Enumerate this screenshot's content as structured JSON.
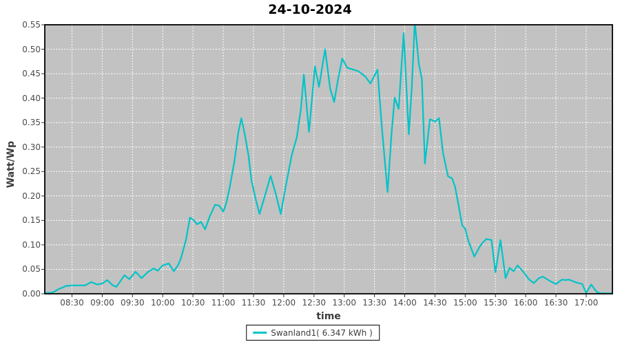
{
  "title": "24-10-2024",
  "axes": {
    "x_label": "time",
    "y_label": "Watt/Wp",
    "x_ticks": [
      "08:30",
      "09:00",
      "09:30",
      "10:00",
      "10:30",
      "11:00",
      "11:30",
      "12:00",
      "12:30",
      "13:00",
      "13:30",
      "14:00",
      "14:30",
      "15:00",
      "15:30",
      "16:00",
      "16:30",
      "17:00"
    ],
    "y_ticks": [
      "0.00",
      "0.05",
      "0.10",
      "0.15",
      "0.20",
      "0.25",
      "0.30",
      "0.35",
      "0.40",
      "0.45",
      "0.50",
      "0.55"
    ]
  },
  "legend": {
    "label": "Swanland1( 6.347 kWh )"
  },
  "colors": {
    "series": "#00c3c7",
    "plot_background": "#c2c2c2",
    "gridline": "#ffffff",
    "plot_border": "#000000",
    "tick_text": "#4a4a4a",
    "axis_label_text": "#3d3d3d"
  },
  "chart_data": {
    "type": "line",
    "title": "24-10-2024",
    "xlabel": "time",
    "ylabel": "Watt/Wp",
    "ylim": [
      0,
      0.55
    ],
    "x_range": [
      "08:03",
      "17:26"
    ],
    "x_tick_interval_minutes": 30,
    "grid": true,
    "grid_style": "white dashed on gray",
    "legend_position": "bottom",
    "series": [
      {
        "name": "Swanland1( 6.347 kWh )",
        "color": "#00c3c7",
        "energy_total_kwh": 6.347,
        "points": [
          [
            "08:04",
            0.002
          ],
          [
            "08:09",
            0.002
          ],
          [
            "08:12",
            0.004
          ],
          [
            "08:17",
            0.01
          ],
          [
            "08:21",
            0.013
          ],
          [
            "08:24",
            0.016
          ],
          [
            "08:30",
            0.017
          ],
          [
            "08:36",
            0.017
          ],
          [
            "08:43",
            0.017
          ],
          [
            "08:49",
            0.024
          ],
          [
            "08:55",
            0.019
          ],
          [
            "09:00",
            0.021
          ],
          [
            "09:05",
            0.028
          ],
          [
            "09:10",
            0.018
          ],
          [
            "09:14",
            0.014
          ],
          [
            "09:18",
            0.026
          ],
          [
            "09:22",
            0.038
          ],
          [
            "09:27",
            0.03
          ],
          [
            "09:33",
            0.045
          ],
          [
            "09:39",
            0.032
          ],
          [
            "09:45",
            0.044
          ],
          [
            "09:51",
            0.052
          ],
          [
            "09:55",
            0.047
          ],
          [
            "10:00",
            0.058
          ],
          [
            "10:06",
            0.062
          ],
          [
            "10:11",
            0.046
          ],
          [
            "10:15",
            0.058
          ],
          [
            "10:18",
            0.072
          ],
          [
            "10:23",
            0.11
          ],
          [
            "10:27",
            0.156
          ],
          [
            "10:31",
            0.15
          ],
          [
            "10:34",
            0.142
          ],
          [
            "10:38",
            0.147
          ],
          [
            "10:42",
            0.132
          ],
          [
            "10:47",
            0.16
          ],
          [
            "10:52",
            0.182
          ],
          [
            "10:56",
            0.18
          ],
          [
            "11:00",
            0.168
          ],
          [
            "11:03",
            0.185
          ],
          [
            "11:06",
            0.213
          ],
          [
            "11:11",
            0.27
          ],
          [
            "11:15",
            0.33
          ],
          [
            "11:18",
            0.359
          ],
          [
            "11:21",
            0.33
          ],
          [
            "11:25",
            0.284
          ],
          [
            "11:28",
            0.232
          ],
          [
            "11:32",
            0.195
          ],
          [
            "11:36",
            0.163
          ],
          [
            "11:42",
            0.205
          ],
          [
            "11:47",
            0.241
          ],
          [
            "11:52",
            0.205
          ],
          [
            "11:57",
            0.163
          ],
          [
            "12:02",
            0.22
          ],
          [
            "12:08",
            0.284
          ],
          [
            "12:13",
            0.32
          ],
          [
            "12:17",
            0.378
          ],
          [
            "12:20",
            0.448
          ],
          [
            "12:25",
            0.331
          ],
          [
            "12:31",
            0.465
          ],
          [
            "12:35",
            0.423
          ],
          [
            "12:41",
            0.5
          ],
          [
            "12:46",
            0.42
          ],
          [
            "12:50",
            0.392
          ],
          [
            "12:54",
            0.44
          ],
          [
            "12:58",
            0.481
          ],
          [
            "13:03",
            0.462
          ],
          [
            "13:08",
            0.459
          ],
          [
            "13:14",
            0.455
          ],
          [
            "13:21",
            0.444
          ],
          [
            "13:26",
            0.43
          ],
          [
            "13:33",
            0.458
          ],
          [
            "13:37",
            0.349
          ],
          [
            "13:43",
            0.208
          ],
          [
            "13:47",
            0.33
          ],
          [
            "13:50",
            0.401
          ],
          [
            "13:54",
            0.378
          ],
          [
            "13:59",
            0.533
          ],
          [
            "14:04",
            0.326
          ],
          [
            "14:07",
            0.42
          ],
          [
            "14:10",
            0.556
          ],
          [
            "14:14",
            0.47
          ],
          [
            "14:17",
            0.439
          ],
          [
            "14:20",
            0.266
          ],
          [
            "14:25",
            0.357
          ],
          [
            "14:30",
            0.352
          ],
          [
            "14:34",
            0.359
          ],
          [
            "14:38",
            0.288
          ],
          [
            "14:43",
            0.24
          ],
          [
            "14:47",
            0.236
          ],
          [
            "14:50",
            0.218
          ],
          [
            "14:53",
            0.185
          ],
          [
            "14:57",
            0.14
          ],
          [
            "15:00",
            0.133
          ],
          [
            "15:03",
            0.109
          ],
          [
            "15:09",
            0.076
          ],
          [
            "15:14",
            0.095
          ],
          [
            "15:17",
            0.104
          ],
          [
            "15:21",
            0.112
          ],
          [
            "15:26",
            0.11
          ],
          [
            "15:30",
            0.044
          ],
          [
            "15:35",
            0.11
          ],
          [
            "15:40",
            0.032
          ],
          [
            "15:44",
            0.053
          ],
          [
            "15:48",
            0.046
          ],
          [
            "15:52",
            0.058
          ],
          [
            "15:58",
            0.044
          ],
          [
            "16:03",
            0.03
          ],
          [
            "16:08",
            0.022
          ],
          [
            "16:13",
            0.032
          ],
          [
            "16:17",
            0.035
          ],
          [
            "16:24",
            0.026
          ],
          [
            "16:30",
            0.02
          ],
          [
            "16:36",
            0.029
          ],
          [
            "16:39",
            0.028
          ],
          [
            "16:43",
            0.029
          ],
          [
            "16:50",
            0.023
          ],
          [
            "16:56",
            0.02
          ],
          [
            "17:00",
            0.002
          ],
          [
            "17:05",
            0.019
          ],
          [
            "17:08",
            0.01
          ],
          [
            "17:11",
            0.003
          ],
          [
            "17:15",
            0.001
          ],
          [
            "17:26",
            0.001
          ]
        ]
      }
    ]
  }
}
